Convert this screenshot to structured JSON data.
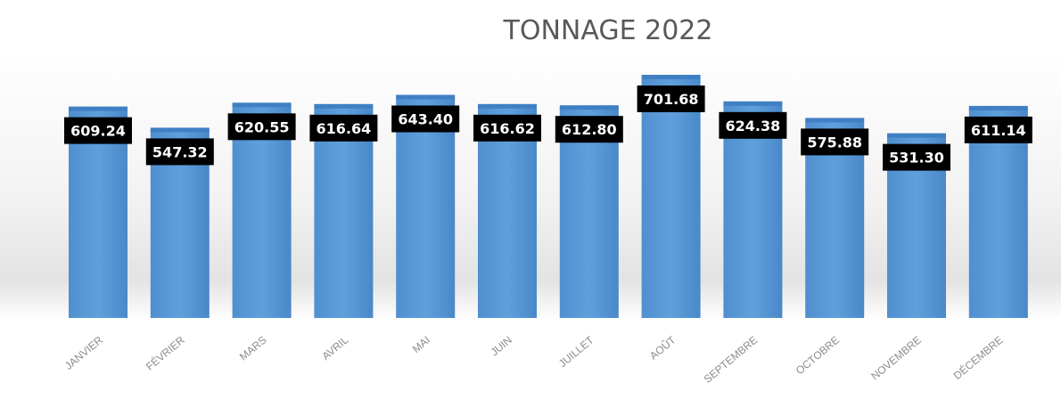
{
  "chart_data": {
    "type": "bar",
    "title": "TONNAGE 2022",
    "categories": [
      "JANVIER",
      "FÉVRIER",
      "MARS",
      "AVRIL",
      "MAI",
      "JUIN",
      "JUILLET",
      "AOÛT",
      "SEPTEMBRE",
      "OCTOBRE",
      "NOVEMBRE",
      "DÉCEMBRE"
    ],
    "values": [
      609.24,
      547.32,
      620.55,
      616.64,
      643.4,
      616.62,
      612.8,
      701.68,
      624.38,
      575.88,
      531.3,
      611.14
    ],
    "value_labels": [
      "609.24",
      "547.32",
      "620.55",
      "616.64",
      "643.40",
      "616.62",
      "612.80",
      "701.68",
      "624.38",
      "575.88",
      "531.30",
      "611.14"
    ],
    "xlabel": "",
    "ylabel": "",
    "ylim": [
      0,
      720
    ],
    "grid": false,
    "legend": "none",
    "colors": {
      "bar": "#5b9bd5",
      "bar_top": "#3f7fc4",
      "label_bg": "#000000",
      "label_text": "#ffffff",
      "title": "#595959",
      "tick": "#8c8c8c"
    }
  }
}
